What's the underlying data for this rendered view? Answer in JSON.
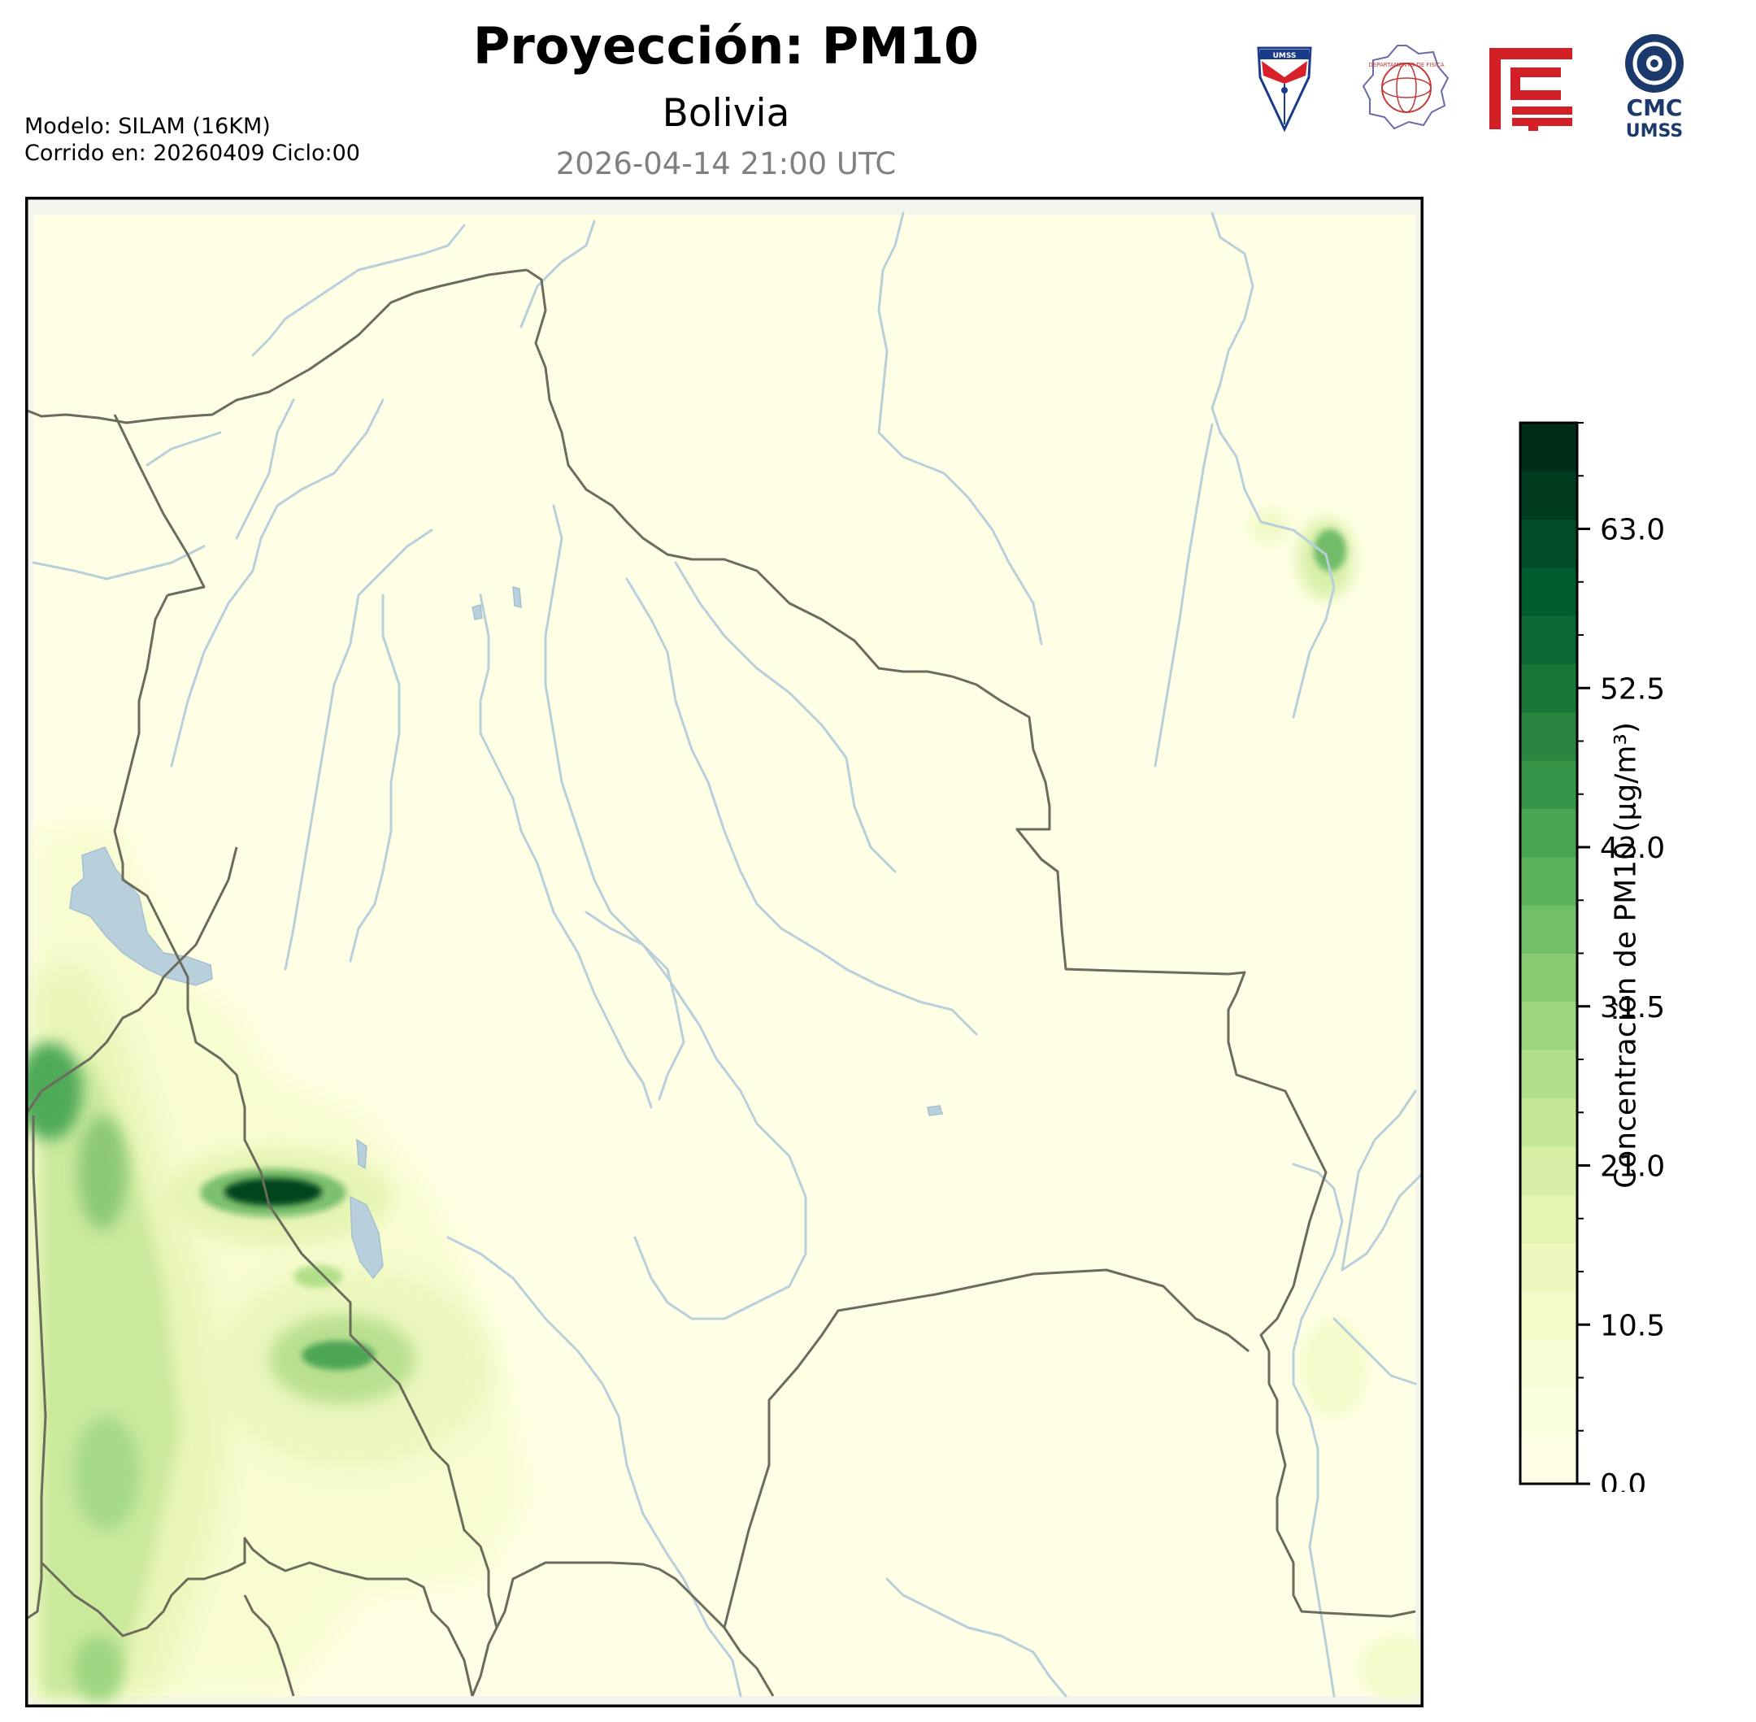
{
  "header": {
    "title": "Proyección: PM10",
    "subtitle": "Bolivia",
    "datetime": "2026-04-14 21:00 UTC"
  },
  "meta": {
    "model": "Modelo: SILAM (16KM)",
    "run": "Corrido en: 20260409 Ciclo:00"
  },
  "logos": [
    {
      "name": "umss-shield-logo",
      "text": "UMSS"
    },
    {
      "name": "departamento-fisica-seal",
      "text": "DEPARTAMENTO DE FISICA"
    },
    {
      "name": "red-geometric-logo",
      "text": ""
    },
    {
      "name": "cmc-umss-logo",
      "text": "CMC UMSS"
    }
  ],
  "map": {
    "region": "Bolivia",
    "variable": "PM10",
    "colors": {
      "land": "#ffffe5",
      "frame_bg": "#f4f6ee",
      "border": "#6b6b5e",
      "river": "#b8cfdc",
      "lake": "#b8cfdc"
    }
  },
  "colorbar": {
    "label": "Concentración de PM10 (μg/m³)",
    "min": 0,
    "max": 70,
    "step": 3.5,
    "ticks": [
      0.0,
      10.5,
      21.0,
      31.5,
      42.0,
      52.5,
      63.0
    ],
    "tick_labels": [
      "0.0",
      "10.5",
      "21.0",
      "31.5",
      "42.0",
      "52.5",
      "63.0"
    ],
    "colors": [
      "#ffffe5",
      "#fcfee0",
      "#f9fdd5",
      "#f4fbc9",
      "#eef8bd",
      "#e3f4b1",
      "#d6efa4",
      "#c5e897",
      "#b2e08a",
      "#9ed67d",
      "#88cb71",
      "#71bf66",
      "#5cb35c",
      "#48a552",
      "#379547",
      "#298540",
      "#1b763a",
      "#0d6834",
      "#005b2f",
      "#004c27",
      "#003d20",
      "#002d18"
    ]
  }
}
